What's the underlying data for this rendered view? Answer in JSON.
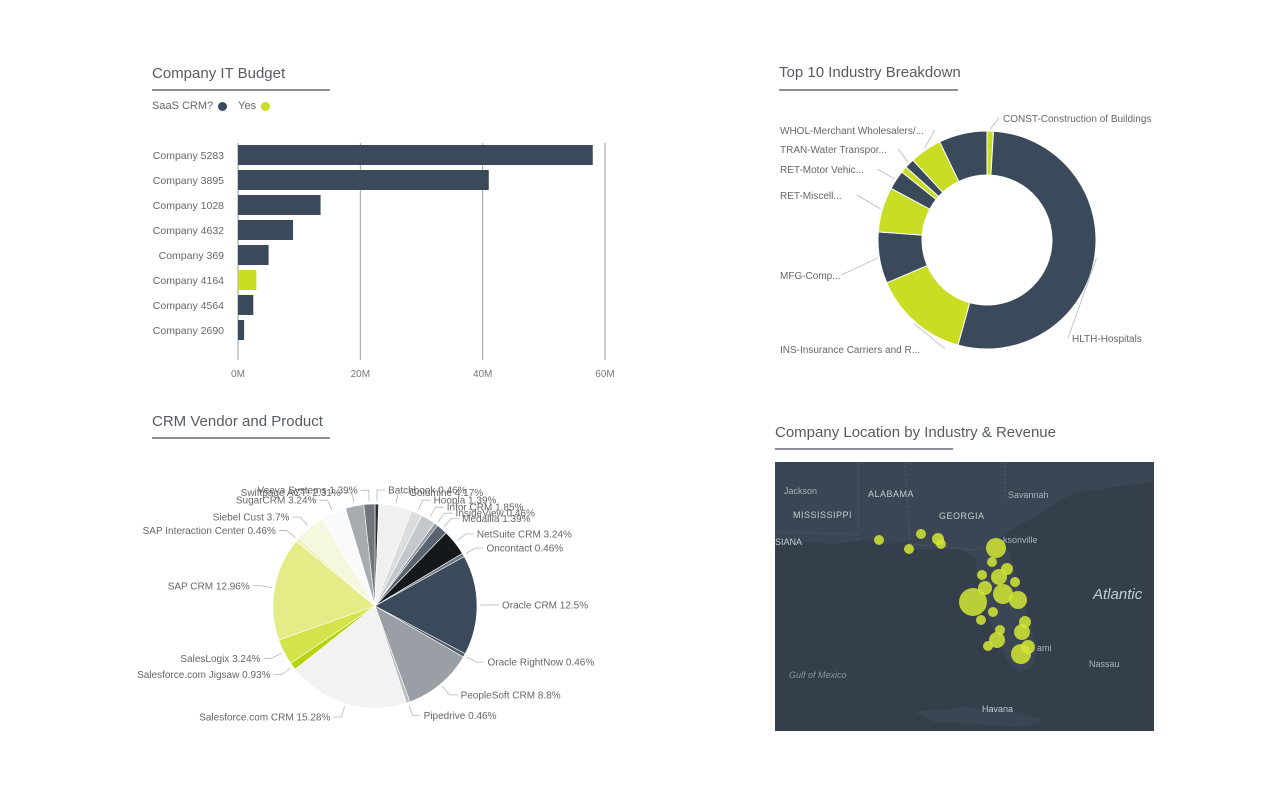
{
  "budget": {
    "title": "Company IT Budget",
    "legend": {
      "label": "SaaS CRM?",
      "yes_label": "Yes"
    }
  },
  "industry": {
    "title": "Top 10 Industry Breakdown"
  },
  "vendor": {
    "title": "CRM Vendor and Product"
  },
  "map": {
    "title": "Company Location by Industry & Revenue",
    "labels": {
      "jackson": "Jackson",
      "alabama": "ALABAMA",
      "mississippi": "MISSISSIPPI",
      "georgia": "GEORGIA",
      "savannah": "Savannah",
      "siana": "SIANA",
      "jacksonville": "ksonville",
      "atlantic": "Atlantic",
      "gulf": "Gulf of Mexico",
      "nassau": "Nassau",
      "havana": "Havana",
      "miami": "ami"
    }
  },
  "colors": {
    "dark": "#3b4a5a",
    "lime": "#c8dd23",
    "grid": "#9a9ea3",
    "map_bg": "#343f4b",
    "bubble": "#d4e634"
  },
  "chart_data": [
    {
      "type": "bar",
      "orientation": "horizontal",
      "title": "Company IT Budget",
      "categories": [
        "Company 5283",
        "Company 3895",
        "Company 1028",
        "Company 4632",
        "Company 369",
        "Company 4164",
        "Company 4564",
        "Company 2690"
      ],
      "values": [
        58,
        41,
        13.5,
        9,
        5,
        3,
        2.5,
        1
      ],
      "saas_crm": [
        "No",
        "No",
        "No",
        "No",
        "No",
        "Yes",
        "No",
        "No"
      ],
      "series": [
        {
          "name": "Yes",
          "color": "#c8dd23"
        }
      ],
      "ticks": [
        "0M",
        "20M",
        "40M",
        "60M"
      ],
      "xlim": [
        0,
        60
      ],
      "grid": true
    },
    {
      "type": "pie",
      "variant": "donut",
      "title": "Top 10 Industry Breakdown",
      "slices": [
        {
          "label": "CONST-Construction of Buildings",
          "value": 1,
          "color": "#c8dd23"
        },
        {
          "label": "HLTH-Hospitals",
          "value": 56,
          "color": "#3b4a5a"
        },
        {
          "label": "INS-Insurance Carriers and R...",
          "value": 15,
          "color": "#c8dd23"
        },
        {
          "label": "MFG-Comp...",
          "value": 8,
          "color": "#3b4a5a"
        },
        {
          "label": "RET-Miscell...",
          "value": 7,
          "color": "#c8dd23"
        },
        {
          "label": "RET-Motor Vehic...",
          "value": 3,
          "color": "#3b4a5a"
        },
        {
          "label": "",
          "value": 1,
          "color": "#c8dd23"
        },
        {
          "label": "TRAN-Water Transpor...",
          "value": 1.5,
          "color": "#3b4a5a"
        },
        {
          "label": "WHOL-Merchant Wholesalers/...",
          "value": 5,
          "color": "#c8dd23"
        },
        {
          "label": "",
          "value": 7.5,
          "color": "#3b4a5a"
        }
      ]
    },
    {
      "type": "pie",
      "title": "CRM Vendor and Product",
      "slices": [
        {
          "label": "Batchbook 0.46%",
          "value": 0.46,
          "color": "#2a2f35"
        },
        {
          "label": "Goldmine 4.17%",
          "value": 4.17,
          "color": "#f0f0f0"
        },
        {
          "label": "Hoopla 1.39%",
          "value": 1.39,
          "color": "#dcdcdc"
        },
        {
          "label": "Infor CRM 1.85%",
          "value": 1.85,
          "color": "#c4c8cc"
        },
        {
          "label": "InsideView 0.46%",
          "value": 0.46,
          "color": "#8c949c"
        },
        {
          "label": "Medallia 1.39%",
          "value": 1.39,
          "color": "#5a6470"
        },
        {
          "label": "NetSuite CRM 3.24%",
          "value": 3.24,
          "color": "#15181b"
        },
        {
          "label": "Oncontact 0.46%",
          "value": 0.46,
          "color": "#6c7680"
        },
        {
          "label": "Oracle CRM 12.5%",
          "value": 12.5,
          "color": "#3b4a5a"
        },
        {
          "label": "Oracle RightNow 0.46%",
          "value": 0.46,
          "color": "#4e5a66"
        },
        {
          "label": "PeopleSoft CRM 8.8%",
          "value": 8.8,
          "color": "#9a9fa5"
        },
        {
          "label": "Pipedrive 0.46%",
          "value": 0.46,
          "color": "#b8bcc0"
        },
        {
          "label": "Salesforce.com CRM 15.28%",
          "value": 15.28,
          "color": "#f2f2f2"
        },
        {
          "label": "Salesforce.com Jigsaw 0.93%",
          "value": 0.93,
          "color": "#b9d20e"
        },
        {
          "label": "SalesLogix 3.24%",
          "value": 3.24,
          "color": "#d3e34a"
        },
        {
          "label": "SAP CRM 12.96%",
          "value": 12.96,
          "color": "#e3ec86"
        },
        {
          "label": "SAP Interaction Center 0.46%",
          "value": 0.46,
          "color": "#eef4b8"
        },
        {
          "label": "Siebel Cust 3.7%",
          "value": 3.7,
          "color": "#f5f8dc"
        },
        {
          "label": "SugarCRM 3.24%",
          "value": 3.24,
          "color": "#fafafa"
        },
        {
          "label": "Swiftpage ACT! 2.31%",
          "value": 2.31,
          "color": "#a8acb0"
        },
        {
          "label": "Veeva Systems 1.39%",
          "value": 1.39,
          "color": "#70767c"
        }
      ]
    }
  ]
}
